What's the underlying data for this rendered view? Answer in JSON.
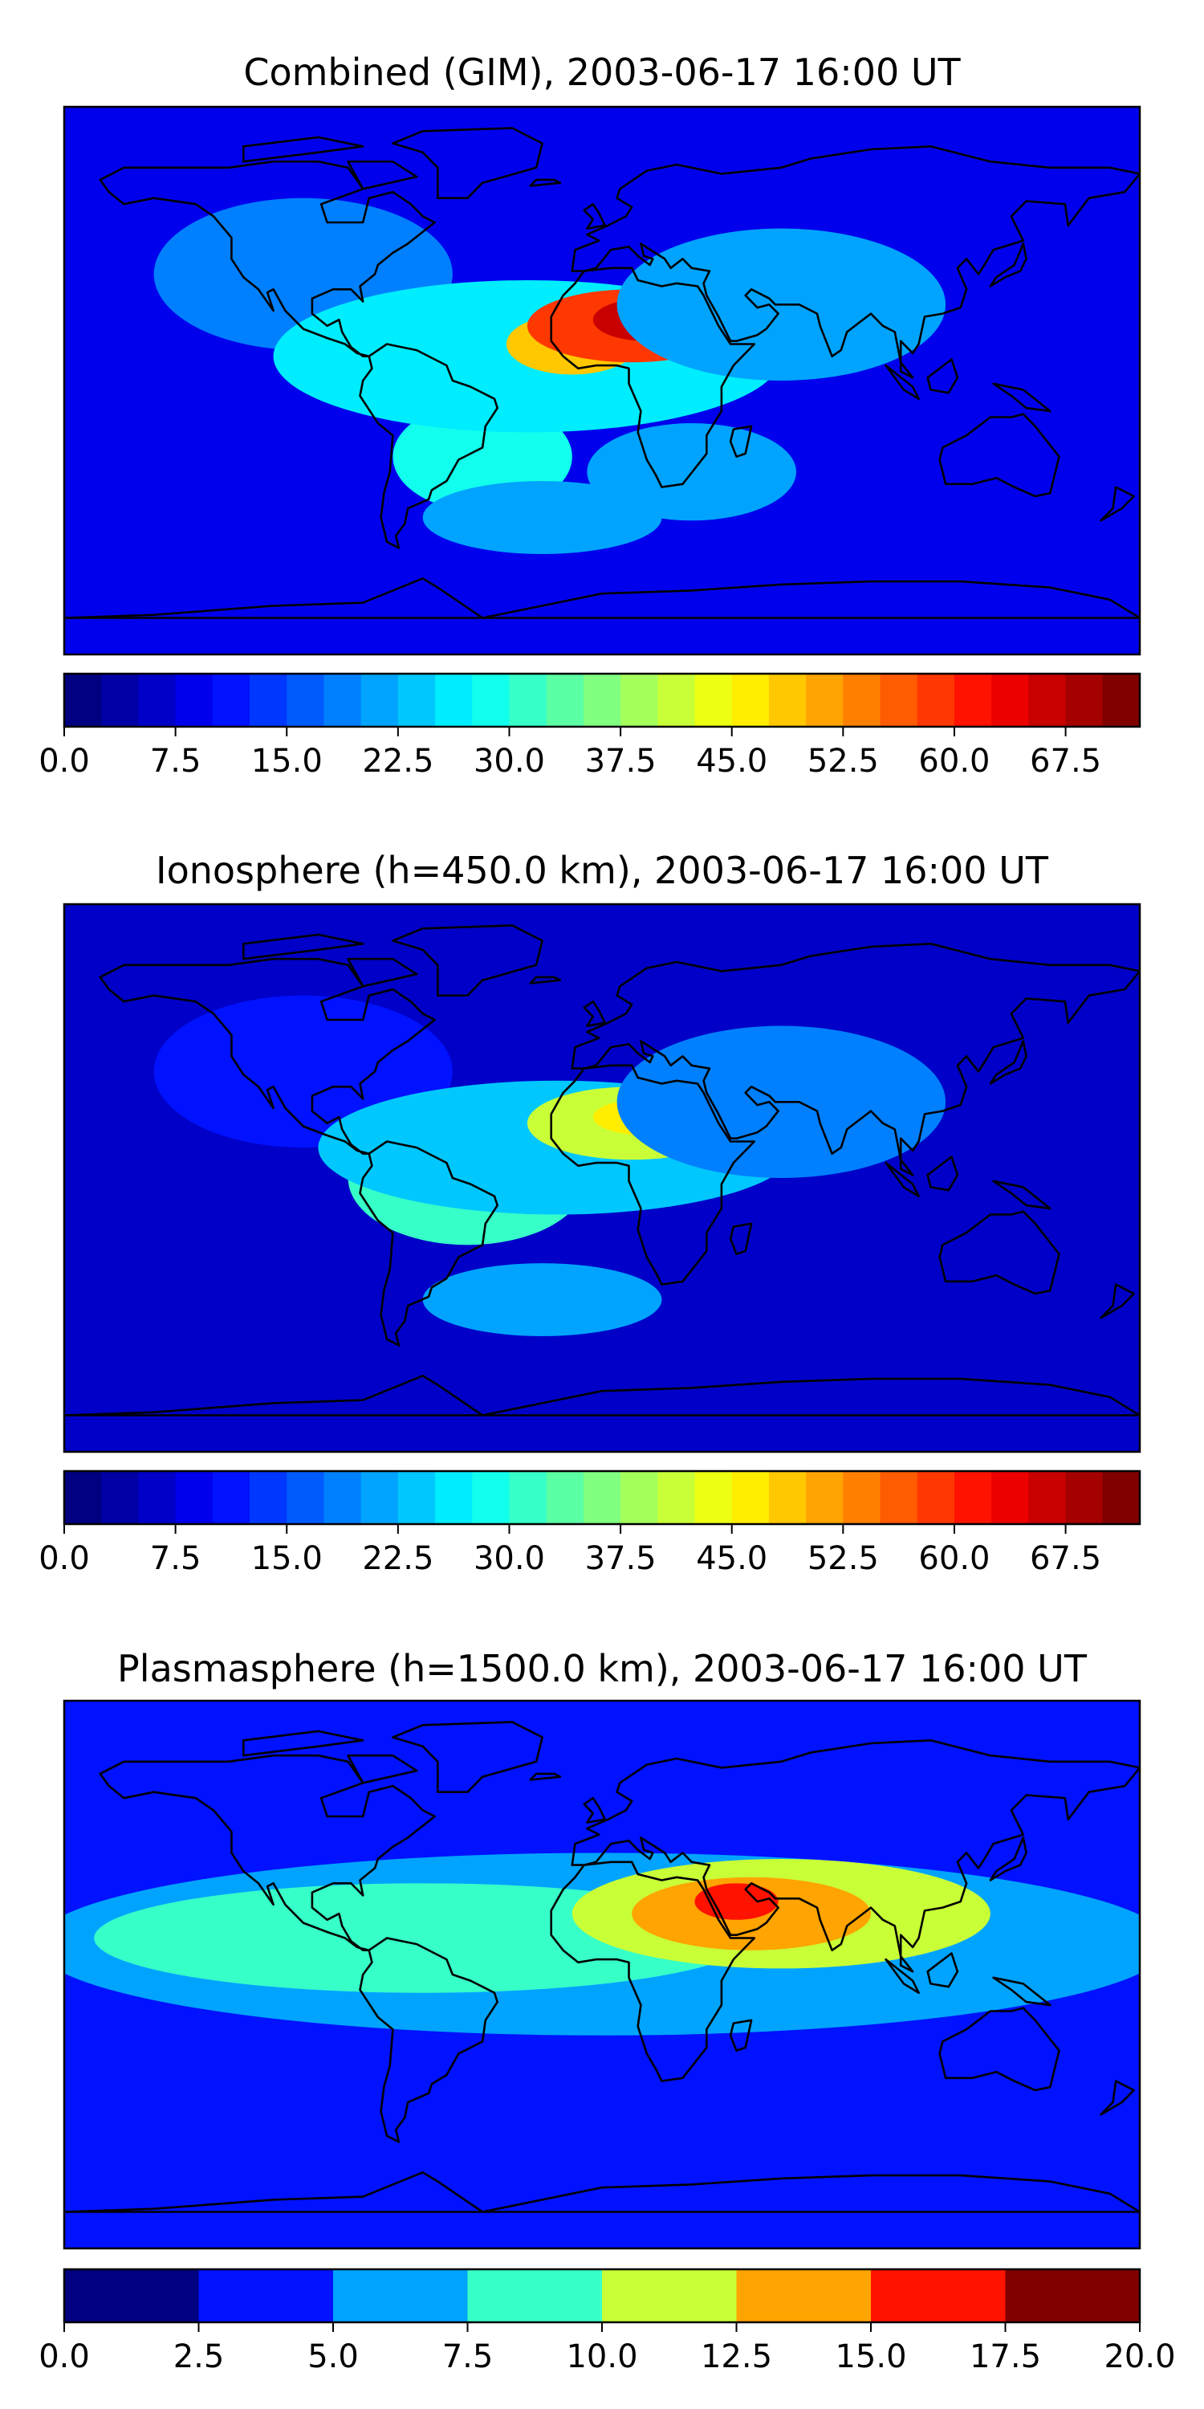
{
  "panels": [
    {
      "title": "Combined (GIM), 2003-06-17 16:00 UT",
      "colorbar": {
        "levels": 29,
        "vmin": 0,
        "vmax": 72.5,
        "ticks": [
          "0.0",
          "7.5",
          "15.0",
          "22.5",
          "30.0",
          "37.5",
          "45.0",
          "52.5",
          "60.0",
          "67.5"
        ],
        "tick_values": [
          0,
          7.5,
          15,
          22.5,
          30,
          37.5,
          45,
          52.5,
          60,
          67.5
        ]
      },
      "map": {
        "background_value": 8,
        "features": [
          {
            "lon": -100,
            "lat": 35,
            "rx": 50,
            "ry": 25,
            "value": 18
          },
          {
            "lon": -40,
            "lat": 5,
            "rx": 35,
            "ry": 22,
            "value": 38
          },
          {
            "lon": -40,
            "lat": -25,
            "rx": 30,
            "ry": 18,
            "value": 28
          },
          {
            "lon": -25,
            "lat": 8,
            "rx": 85,
            "ry": 25,
            "value": 25
          },
          {
            "lon": -10,
            "lat": 12,
            "rx": 22,
            "ry": 10,
            "value": 48
          },
          {
            "lon": 10,
            "lat": 18,
            "rx": 35,
            "ry": 12,
            "value": 58
          },
          {
            "lon": 15,
            "lat": 20,
            "rx": 18,
            "ry": 7,
            "value": 65
          },
          {
            "lon": 60,
            "lat": 25,
            "rx": 55,
            "ry": 25,
            "value": 22
          },
          {
            "lon": 30,
            "lat": -30,
            "rx": 35,
            "ry": 16,
            "value": 22
          },
          {
            "lon": -20,
            "lat": -45,
            "rx": 40,
            "ry": 12,
            "value": 22
          }
        ]
      }
    },
    {
      "title": "Ionosphere  (h=450.0 km), 2003-06-17 16:00 UT",
      "colorbar": {
        "levels": 29,
        "vmin": 0,
        "vmax": 72.5,
        "ticks": [
          "0.0",
          "7.5",
          "15.0",
          "22.5",
          "30.0",
          "37.5",
          "45.0",
          "52.5",
          "60.0",
          "67.5"
        ],
        "tick_values": [
          0,
          7.5,
          15,
          22.5,
          30,
          37.5,
          45,
          52.5,
          60,
          67.5
        ]
      },
      "map": {
        "background_value": 6,
        "features": [
          {
            "lon": -100,
            "lat": 35,
            "rx": 50,
            "ry": 25,
            "value": 12
          },
          {
            "lon": -45,
            "lat": 0,
            "rx": 40,
            "ry": 22,
            "value": 30
          },
          {
            "lon": -15,
            "lat": 10,
            "rx": 80,
            "ry": 22,
            "value": 24
          },
          {
            "lon": 10,
            "lat": 18,
            "rx": 35,
            "ry": 12,
            "value": 42
          },
          {
            "lon": 15,
            "lat": 20,
            "rx": 18,
            "ry": 6,
            "value": 46
          },
          {
            "lon": 60,
            "lat": 25,
            "rx": 55,
            "ry": 25,
            "value": 18
          },
          {
            "lon": -20,
            "lat": -40,
            "rx": 40,
            "ry": 12,
            "value": 22
          }
        ]
      }
    },
    {
      "title": "Plasmasphere (h=1500.0 km), 2003-06-17 16:00 UT",
      "colorbar": {
        "levels": 8,
        "vmin": 0,
        "vmax": 20,
        "ticks": [
          "0.0",
          "2.5",
          "5.0",
          "7.5",
          "10.0",
          "12.5",
          "15.0",
          "17.5",
          "20.0"
        ],
        "tick_values": [
          0,
          2.5,
          5,
          7.5,
          10,
          12.5,
          15,
          17.5,
          20
        ]
      },
      "map": {
        "background_value": 3.5,
        "features": [
          {
            "lon": 0,
            "lat": 10,
            "rx": 190,
            "ry": 30,
            "value": 6.5
          },
          {
            "lon": -60,
            "lat": 12,
            "rx": 110,
            "ry": 18,
            "value": 8.5
          },
          {
            "lon": 60,
            "lat": 20,
            "rx": 70,
            "ry": 18,
            "value": 10
          },
          {
            "lon": 50,
            "lat": 20,
            "rx": 40,
            "ry": 12,
            "value": 13
          },
          {
            "lon": 45,
            "lat": 24,
            "rx": 14,
            "ry": 6,
            "value": 16
          }
        ]
      }
    }
  ]
}
